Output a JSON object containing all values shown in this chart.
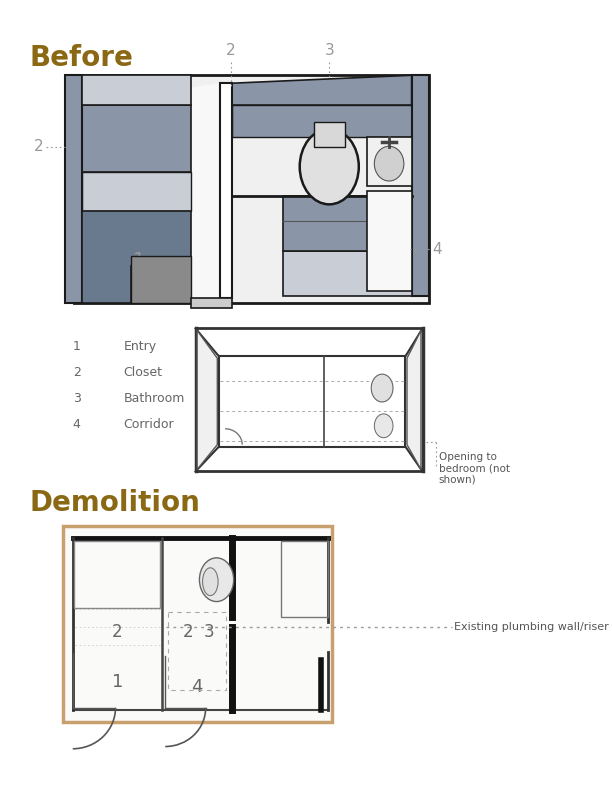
{
  "title_before": "Before",
  "title_demolition": "Demolition",
  "title_color": "#8B6914",
  "title_fontsize": 20,
  "bg_color": "#ffffff",
  "legend_items": [
    [
      "1",
      "Entry"
    ],
    [
      "2",
      "Closet"
    ],
    [
      "3",
      "Bathroom"
    ],
    [
      "4",
      "Corridor"
    ]
  ],
  "annotation_opening": "Opening to\nbedroom (not\nshown)",
  "annotation_plumbing": "Existing plumbing wall/riser",
  "label_color": "#999999",
  "wall_dark": "#1a1a1a",
  "wall_mid": "#555555",
  "gray_fill": "#8a96a8",
  "gray_dark": "#6a7a8e",
  "gray_light": "#c8cdd6",
  "floor_light": "#f0f0f0",
  "white_fill": "#ffffff",
  "tan_border": "#c8a06e"
}
